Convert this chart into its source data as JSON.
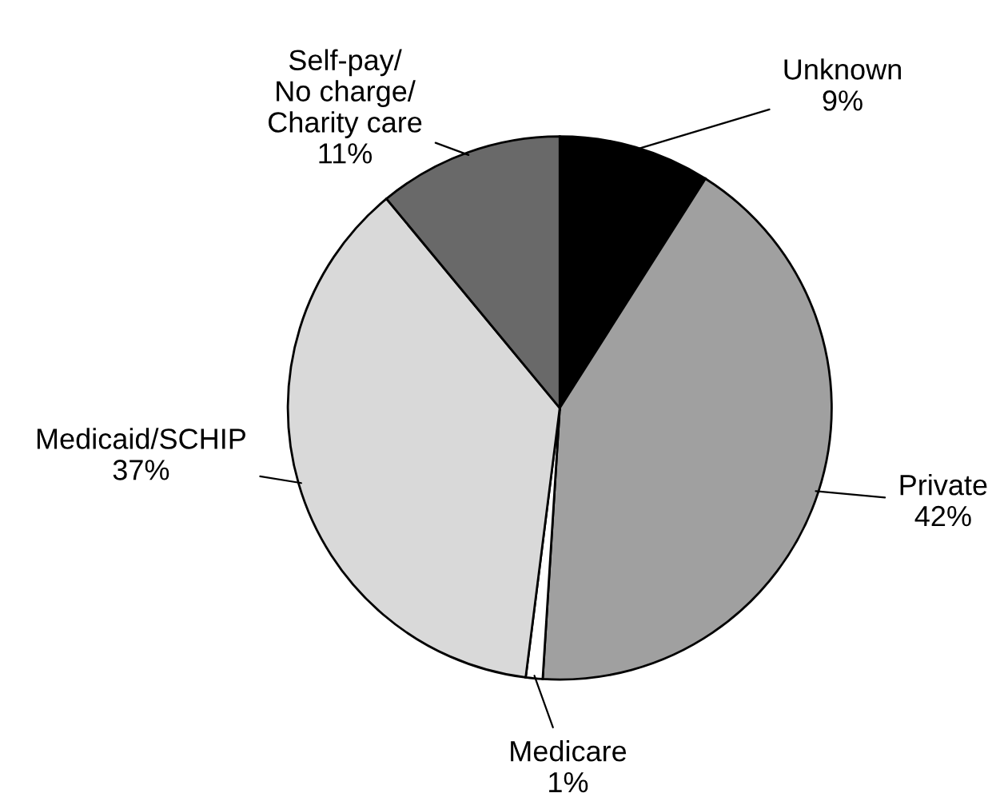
{
  "chart_data": {
    "type": "pie",
    "categories": [
      "Unknown",
      "Private",
      "Medicare",
      "Medicaid/SCHIP",
      "Self-pay/\nNo charge/\nCharity care"
    ],
    "values": [
      9,
      42,
      1,
      37,
      11
    ],
    "value_labels": [
      "9%",
      "42%",
      "1%",
      "37%",
      "11%"
    ],
    "colors": [
      "#000000",
      "#a0a0a0",
      "#ffffff",
      "#d9d9d9",
      "#696969"
    ]
  }
}
